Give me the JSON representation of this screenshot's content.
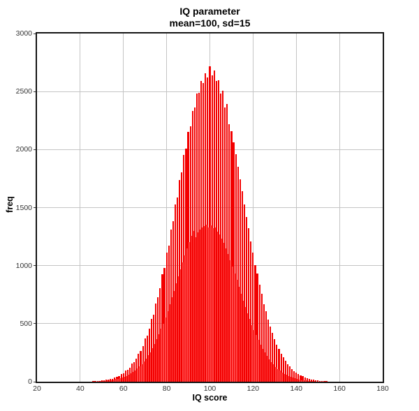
{
  "chart_data": {
    "type": "bar",
    "subtype": "histogram",
    "title": "IQ parameter",
    "subtitle": "mean=100, sd=15",
    "xlabel": "IQ score",
    "ylabel": "freq",
    "xlim": [
      20,
      180
    ],
    "ylim": [
      0,
      3000
    ],
    "xticks": [
      20,
      40,
      60,
      80,
      100,
      120,
      140,
      160,
      180
    ],
    "yticks": [
      0,
      500,
      1000,
      1500,
      2000,
      2500,
      3000
    ],
    "grid": "on",
    "legend": "none",
    "colors": {
      "bar_main": "#f30000",
      "bar_offset": "#ff4646",
      "gridline": "#c4c4c4",
      "border": "#141414",
      "tick_text": "#333333",
      "label_text": "#000000",
      "background": "#ffffff"
    },
    "bin_width": 1,
    "series": [
      {
        "name": "main-bins",
        "start": 44,
        "step": 1,
        "bar_width_units": 0.7,
        "heights": [
          3,
          2,
          5,
          4,
          8,
          7,
          12,
          10,
          18,
          17,
          27,
          26,
          39,
          41,
          49,
          68,
          71,
          95,
          101,
          121,
          155,
          168,
          198,
          243,
          262,
          305,
          372,
          399,
          455,
          540,
          578,
          676,
          726,
          808,
          925,
          982,
          1110,
          1175,
          1310,
          1380,
          1525,
          1590,
          1740,
          1805,
          1955,
          2010,
          2155,
          2200,
          2330,
          2360,
          2480,
          2490,
          2590,
          2575,
          2660,
          2620,
          2715,
          2640,
          2680,
          2590,
          2600,
          2480,
          2510,
          2360,
          2390,
          2220,
          2160,
          2060,
          1960,
          1850,
          1745,
          1640,
          1530,
          1420,
          1320,
          1210,
          1115,
          1005,
          930,
          835,
          755,
          670,
          605,
          535,
          475,
          420,
          368,
          320,
          280,
          242,
          208,
          180,
          152,
          130,
          110,
          93,
          78,
          66,
          55,
          46,
          38,
          31,
          26,
          21,
          17,
          14,
          11,
          9,
          7,
          6,
          4,
          3,
          2
        ]
      },
      {
        "name": "offset-bins",
        "start": 44.5,
        "step": 1,
        "bar_width_units": 0.45,
        "heights": [
          1,
          2,
          3,
          3,
          5,
          5,
          7,
          8,
          10,
          12,
          15,
          19,
          22,
          26,
          31,
          36,
          44,
          50,
          60,
          70,
          83,
          97,
          112,
          130,
          150,
          172,
          198,
          226,
          255,
          290,
          326,
          366,
          408,
          455,
          500,
          555,
          610,
          665,
          725,
          780,
          845,
          905,
          970,
          1030,
          1090,
          1150,
          1205,
          1255,
          1300,
          1245,
          1285,
          1310,
          1330,
          1340,
          1355,
          1330,
          1345,
          1320,
          1330,
          1295,
          1270,
          1235,
          1195,
          1150,
          1100,
          1045,
          990,
          930,
          875,
          815,
          755,
          700,
          645,
          590,
          540,
          490,
          443,
          400,
          358,
          320,
          285,
          252,
          222,
          195,
          170,
          148,
          128,
          110,
          95,
          81,
          69,
          58,
          49,
          41,
          34,
          28,
          23,
          19,
          15,
          12,
          10,
          8,
          6,
          5,
          4,
          3,
          2,
          2,
          1,
          1,
          1,
          0
        ]
      }
    ]
  }
}
